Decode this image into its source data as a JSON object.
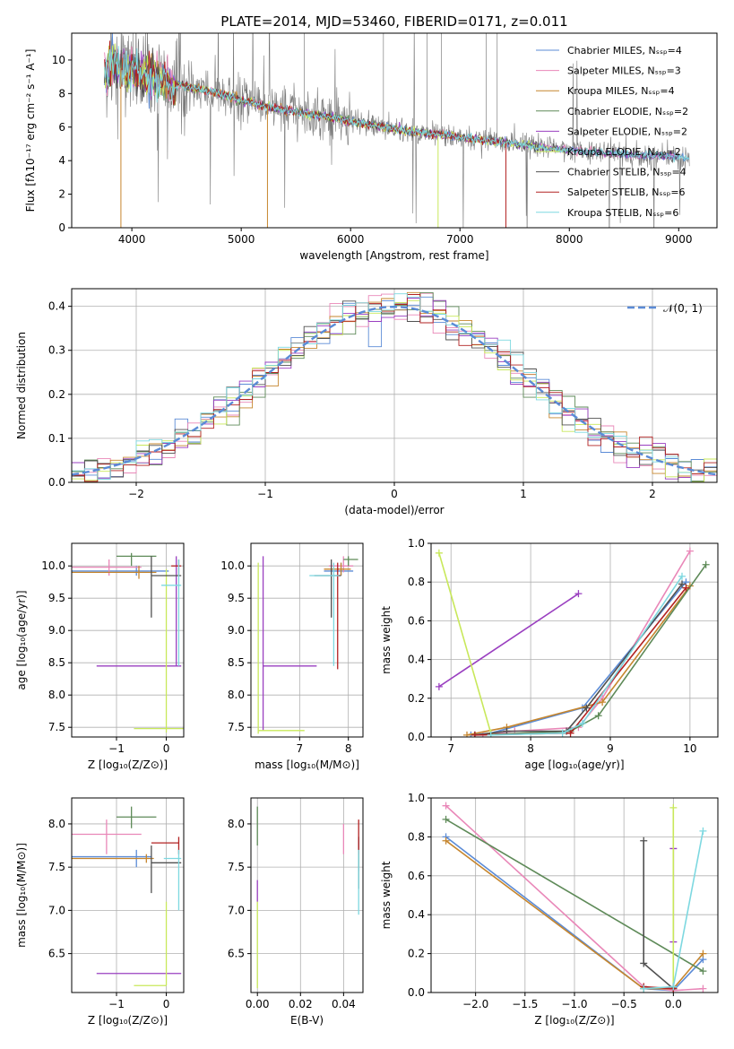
{
  "colors": [
    "#5b8bd6",
    "#e987b8",
    "#c6862e",
    "#5e8a58",
    "#9a3fc0",
    "#c8e85a",
    "#505050",
    "#b22222",
    "#7dd8e0"
  ],
  "chart_data": [
    {
      "id": "spectrum",
      "type": "line",
      "title": "PLATE=2014, MJD=53460, FIBERID=0171, z=0.011",
      "xlabel": "wavelength [Angstrom, rest frame]",
      "ylabel": "Flux [fλ10⁻¹⁷ erg cm⁻² s⁻¹ A⁻¹]",
      "xlim": [
        3450,
        9350
      ],
      "ylim": [
        0,
        11.6
      ],
      "xticks": [
        4000,
        5000,
        6000,
        7000,
        8000,
        9000
      ],
      "yticks": [
        0,
        2,
        4,
        6,
        8,
        10
      ],
      "grid": false,
      "legend_position": "top-right",
      "legend": [
        "Chabrier MILES, Nₛₛₚ=4",
        "Salpeter MILES, Nₛₛₚ=3",
        "Kroupa MILES, Nₛₛₚ=4",
        "Chabrier ELODIE, Nₛₛₚ=2",
        "Salpeter ELODIE, Nₛₛₚ=2",
        "Kroupa ELODIE, Nₛₛₚ=2",
        "Chabrier STELIB, Nₛₛₚ=4",
        "Salpeter STELIB, Nₛₛₚ=6",
        "Kroupa STELIB, Nₛₛₚ=6"
      ],
      "continuum": [
        [
          3750,
          9.4
        ],
        [
          3850,
          9.6
        ],
        [
          4000,
          9.3
        ],
        [
          4200,
          8.9
        ],
        [
          4500,
          8.4
        ],
        [
          4800,
          8.0
        ],
        [
          5000,
          7.6
        ],
        [
          5200,
          7.3
        ],
        [
          5500,
          6.9
        ],
        [
          5800,
          6.6
        ],
        [
          6000,
          6.3
        ],
        [
          6300,
          6.0
        ],
        [
          6600,
          5.7
        ],
        [
          7000,
          5.4
        ],
        [
          7500,
          5.0
        ],
        [
          8000,
          4.6
        ],
        [
          8500,
          4.4
        ],
        [
          9000,
          4.2
        ],
        [
          9100,
          4.1
        ]
      ]
    },
    {
      "id": "residuals",
      "type": "histogram",
      "xlabel": "(data-model)/error",
      "ylabel": "Normed distribution",
      "xlim": [
        -2.5,
        2.5
      ],
      "ylim": [
        0,
        0.44
      ],
      "xticks": [
        -2,
        -1,
        0,
        1,
        2
      ],
      "yticks": [
        0.0,
        0.1,
        0.2,
        0.3,
        0.4
      ],
      "grid": true,
      "legend_position": "top-right",
      "legend": [
        "𝒩(0, 1)"
      ],
      "bin_width": 0.1,
      "reference_curve": "normal(0,1)"
    },
    {
      "id": "age-vs-Z",
      "type": "scatter",
      "xlabel": "Z [log₁₀(Z/Z⊙)]",
      "ylabel": "age  [log₁₀(age/yr)]",
      "xlim": [
        -1.9,
        0.35
      ],
      "ylim": [
        7.35,
        10.35
      ],
      "xticks": [
        -1,
        0
      ],
      "yticks": [
        7.5,
        8.0,
        8.5,
        9.0,
        9.5,
        10.0
      ],
      "grid": true,
      "errorbars": [
        {
          "s": 0,
          "x": -0.6,
          "y": 9.92,
          "xl": -1.9,
          "xh": 0.05,
          "yl": 9.85,
          "yh": 10.0
        },
        {
          "s": 1,
          "x": -1.15,
          "y": 9.98,
          "xl": -1.9,
          "xh": -0.5,
          "yl": 9.85,
          "yh": 10.1
        },
        {
          "s": 2,
          "x": -0.55,
          "y": 9.9,
          "xl": -1.9,
          "xh": -0.2,
          "yl": 9.8,
          "yh": 10.0
        },
        {
          "s": 3,
          "x": -0.7,
          "y": 10.15,
          "xl": -1.0,
          "xh": -0.2,
          "yl": 10.0,
          "yh": 10.2
        },
        {
          "s": 4,
          "x": 0.2,
          "y": 8.45,
          "xl": -1.4,
          "xh": 0.3,
          "yl": 8.45,
          "yh": 10.15
        },
        {
          "s": 5,
          "x": 0.0,
          "y": 7.48,
          "xl": -0.65,
          "xh": 0.35,
          "yl": 7.42,
          "yh": 9.95
        },
        {
          "s": 6,
          "x": -0.3,
          "y": 9.85,
          "xl": -0.3,
          "xh": 0.3,
          "yl": 9.2,
          "yh": 10.15
        },
        {
          "s": 7,
          "x": 0.25,
          "y": 10.0,
          "xl": 0.1,
          "xh": 0.3,
          "yl": 9.85,
          "yh": 10.1
        },
        {
          "s": 8,
          "x": 0.25,
          "y": 9.7,
          "xl": -0.1,
          "xh": 0.3,
          "yl": 8.45,
          "yh": 10.1
        }
      ]
    },
    {
      "id": "age-vs-mass",
      "type": "scatter",
      "xlabel": "mass [log₁₀(M/M⊙)]",
      "ylabel": "",
      "xlim": [
        6.0,
        8.3
      ],
      "ylim": [
        7.35,
        10.35
      ],
      "xticks": [
        7,
        8
      ],
      "yticks": [
        7.5,
        8.0,
        8.5,
        9.0,
        9.5,
        10.0
      ],
      "grid": true,
      "errorbars": [
        {
          "s": 0,
          "x": 7.85,
          "y": 9.92,
          "xl": 7.5,
          "xh": 8.1,
          "yl": 9.85,
          "yh": 10.05
        },
        {
          "s": 1,
          "x": 7.9,
          "y": 10.0,
          "xl": 7.6,
          "xh": 8.1,
          "yl": 9.9,
          "yh": 10.15
        },
        {
          "s": 2,
          "x": 7.85,
          "y": 9.95,
          "xl": 7.5,
          "xh": 8.05,
          "yl": 9.85,
          "yh": 10.05
        },
        {
          "s": 3,
          "x": 8.0,
          "y": 10.1,
          "xl": 7.9,
          "xh": 8.2,
          "yl": 10.0,
          "yh": 10.15
        },
        {
          "s": 4,
          "x": 6.25,
          "y": 8.45,
          "xl": 6.25,
          "xh": 7.35,
          "yl": 7.45,
          "yh": 10.15
        },
        {
          "s": 5,
          "x": 6.15,
          "y": 7.45,
          "xl": 6.15,
          "xh": 7.1,
          "yl": 7.4,
          "yh": 10.05
        },
        {
          "s": 6,
          "x": 7.65,
          "y": 9.85,
          "xl": 7.3,
          "xh": 7.85,
          "yl": 9.2,
          "yh": 10.1
        },
        {
          "s": 7,
          "x": 7.78,
          "y": 9.95,
          "xl": 7.78,
          "xh": 7.8,
          "yl": 8.4,
          "yh": 10.05
        },
        {
          "s": 8,
          "x": 7.7,
          "y": 9.85,
          "xl": 7.2,
          "xh": 7.8,
          "yl": 8.45,
          "yh": 10.05
        }
      ]
    },
    {
      "id": "weight-vs-age",
      "type": "line",
      "xlabel": "age  [log₁₀(age/yr)]",
      "ylabel": "mass weight",
      "xlim": [
        6.75,
        10.35
      ],
      "ylim": [
        0.0,
        1.0
      ],
      "xticks": [
        7,
        8,
        9,
        10
      ],
      "yticks": [
        0.0,
        0.2,
        0.4,
        0.6,
        0.8,
        1.0
      ],
      "grid": true,
      "series": [
        {
          "s": 0,
          "points": [
            [
              7.25,
              0.01
            ],
            [
              7.5,
              0.02
            ],
            [
              8.65,
              0.15
            ],
            [
              9.95,
              0.8
            ]
          ]
        },
        {
          "s": 1,
          "points": [
            [
              7.4,
              0.01
            ],
            [
              7.8,
              0.03
            ],
            [
              8.6,
              0.05
            ],
            [
              8.9,
              0.2
            ],
            [
              10.0,
              0.96
            ]
          ]
        },
        {
          "s": 2,
          "points": [
            [
              7.2,
              0.01
            ],
            [
              7.7,
              0.05
            ],
            [
              8.9,
              0.18
            ],
            [
              10.0,
              0.78
            ]
          ]
        },
        {
          "s": 3,
          "points": [
            [
              7.3,
              0.01
            ],
            [
              8.5,
              0.03
            ],
            [
              8.85,
              0.11
            ],
            [
              10.2,
              0.89
            ]
          ]
        },
        {
          "s": 4,
          "points": [
            [
              6.85,
              0.26
            ],
            [
              8.6,
              0.74
            ]
          ]
        },
        {
          "s": 5,
          "points": [
            [
              6.85,
              0.95
            ],
            [
              7.5,
              0.02
            ]
          ]
        },
        {
          "s": 6,
          "points": [
            [
              7.3,
              0.01
            ],
            [
              7.7,
              0.03
            ],
            [
              8.45,
              0.03
            ],
            [
              8.7,
              0.15
            ],
            [
              9.9,
              0.79
            ]
          ]
        },
        {
          "s": 7,
          "points": [
            [
              7.3,
              0.01
            ],
            [
              8.5,
              0.02
            ],
            [
              9.95,
              0.77
            ]
          ]
        },
        {
          "s": 8,
          "points": [
            [
              7.5,
              0.01
            ],
            [
              8.4,
              0.02
            ],
            [
              8.65,
              0.07
            ],
            [
              9.9,
              0.83
            ]
          ]
        }
      ]
    },
    {
      "id": "mass-vs-Z",
      "type": "scatter",
      "xlabel": "Z [log₁₀(Z/Z⊙)]",
      "ylabel": "mass [log₁₀(M/M⊙)]",
      "xlim": [
        -1.9,
        0.35
      ],
      "ylim": [
        6.05,
        8.3
      ],
      "xticks": [
        -1,
        0
      ],
      "yticks": [
        6.5,
        7.0,
        7.5,
        8.0
      ],
      "grid": true,
      "errorbars": [
        {
          "s": 0,
          "x": -0.6,
          "y": 7.62,
          "xl": -1.9,
          "xh": -0.3,
          "yl": 7.5,
          "yh": 7.7
        },
        {
          "s": 1,
          "x": -1.2,
          "y": 7.88,
          "xl": -1.9,
          "xh": -0.5,
          "yl": 7.65,
          "yh": 8.05
        },
        {
          "s": 2,
          "x": -0.4,
          "y": 7.6,
          "xl": -1.9,
          "xh": -0.25,
          "yl": 7.55,
          "yh": 7.65
        },
        {
          "s": 3,
          "x": -0.7,
          "y": 8.08,
          "xl": -1.0,
          "xh": -0.2,
          "yl": 7.95,
          "yh": 8.2
        },
        {
          "s": 4,
          "x": 0.3,
          "y": 6.27,
          "xl": -1.4,
          "xh": 0.3,
          "yl": 6.27,
          "yh": 6.27
        },
        {
          "s": 5,
          "x": 0.0,
          "y": 6.13,
          "xl": -0.65,
          "xh": 0.0,
          "yl": 6.13,
          "yh": 7.1
        },
        {
          "s": 6,
          "x": -0.3,
          "y": 7.55,
          "xl": -0.3,
          "xh": 0.3,
          "yl": 7.2,
          "yh": 7.75
        },
        {
          "s": 7,
          "x": 0.25,
          "y": 7.78,
          "xl": -0.3,
          "xh": 0.25,
          "yl": 7.65,
          "yh": 7.85
        },
        {
          "s": 8,
          "x": 0.25,
          "y": 7.6,
          "xl": -0.05,
          "xh": 0.3,
          "yl": 7.0,
          "yh": 7.7
        }
      ]
    },
    {
      "id": "mass-vs-EBV",
      "type": "scatter",
      "xlabel": "E(B-V)",
      "ylabel": "",
      "xlim": [
        -0.003,
        0.049
      ],
      "ylim": [
        6.05,
        8.3
      ],
      "xticks": [
        0.0,
        0.02,
        0.04
      ],
      "yticks": [
        6.5,
        7.0,
        7.5,
        8.0
      ],
      "grid": true,
      "errorbars": [
        {
          "s": 0,
          "x": 0.047,
          "y": 7.6,
          "xl": 0.047,
          "xh": 0.047,
          "yl": 7.45,
          "yh": 7.85
        },
        {
          "s": 1,
          "x": 0.04,
          "y": 7.85,
          "xl": 0.04,
          "xh": 0.04,
          "yl": 7.65,
          "yh": 8.0
        },
        {
          "s": 2,
          "x": 0.047,
          "y": 7.6,
          "xl": 0.047,
          "xh": 0.047,
          "yl": 7.5,
          "yh": 7.7
        },
        {
          "s": 3,
          "x": 0.0,
          "y": 8.0,
          "xl": 0.0,
          "xh": 0.0,
          "yl": 7.75,
          "yh": 8.2
        },
        {
          "s": 4,
          "x": 0.0,
          "y": 7.2,
          "xl": 0.0,
          "xh": 0.0,
          "yl": 7.1,
          "yh": 7.35
        },
        {
          "s": 5,
          "x": 0.0,
          "y": 6.5,
          "xl": 0.0,
          "xh": 0.0,
          "yl": 6.1,
          "yh": 7.1
        },
        {
          "s": 6,
          "x": 0.047,
          "y": 7.5,
          "xl": 0.047,
          "xh": 0.047,
          "yl": 7.25,
          "yh": 7.85
        },
        {
          "s": 7,
          "x": 0.047,
          "y": 7.8,
          "xl": 0.047,
          "xh": 0.047,
          "yl": 7.65,
          "yh": 8.05
        },
        {
          "s": 8,
          "x": 0.047,
          "y": 7.3,
          "xl": 0.047,
          "xh": 0.047,
          "yl": 6.95,
          "yh": 7.7
        }
      ]
    },
    {
      "id": "weight-vs-Z",
      "type": "line",
      "xlabel": "Z [log₁₀(Z/Z⊙)]",
      "ylabel": "mass weight",
      "xlim": [
        -2.45,
        0.45
      ],
      "ylim": [
        0.0,
        1.0
      ],
      "xticks": [
        -2.0,
        -1.5,
        -1.0,
        -0.5,
        0.0
      ],
      "yticks": [
        0.0,
        0.2,
        0.4,
        0.6,
        0.8,
        1.0
      ],
      "grid": true,
      "series": [
        {
          "s": 0,
          "points": [
            [
              -2.3,
              0.8
            ],
            [
              -0.3,
              0.02
            ],
            [
              0.0,
              0.01
            ],
            [
              0.3,
              0.17
            ]
          ]
        },
        {
          "s": 1,
          "points": [
            [
              -2.3,
              0.96
            ],
            [
              -0.3,
              0.03
            ],
            [
              0.0,
              0.01
            ],
            [
              0.3,
              0.02
            ]
          ]
        },
        {
          "s": 2,
          "points": [
            [
              -2.3,
              0.78
            ],
            [
              -0.3,
              0.02
            ],
            [
              0.0,
              0.02
            ],
            [
              0.3,
              0.2
            ]
          ]
        },
        {
          "s": 3,
          "points": [
            [
              -2.3,
              0.89
            ],
            [
              0.3,
              0.11
            ]
          ]
        },
        {
          "s": 4,
          "points": [
            [
              0.0,
              0.74
            ],
            [
              0.0,
              0.26
            ]
          ]
        },
        {
          "s": 5,
          "points": [
            [
              0.0,
              0.95
            ],
            [
              0.0,
              0.02
            ]
          ]
        },
        {
          "s": 6,
          "points": [
            [
              -0.3,
              0.78
            ],
            [
              -0.3,
              0.15
            ],
            [
              0.0,
              0.02
            ],
            [
              0.0,
              0.03
            ]
          ]
        },
        {
          "s": 7,
          "points": [
            [
              -0.3,
              0.03
            ],
            [
              0.0,
              0.02
            ]
          ]
        },
        {
          "s": 8,
          "points": [
            [
              -0.3,
              0.02
            ],
            [
              0.0,
              0.03
            ],
            [
              0.3,
              0.83
            ]
          ]
        }
      ]
    }
  ]
}
